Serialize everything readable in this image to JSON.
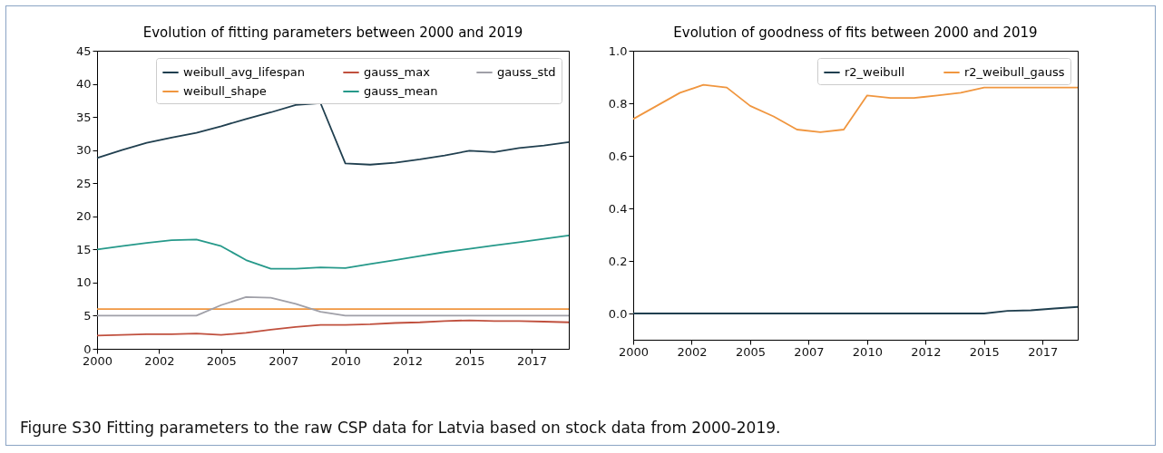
{
  "chart_data": [
    {
      "type": "line",
      "title": "Evolution of fitting parameters between 2000 and 2019",
      "x": [
        2000,
        2001,
        2002,
        2003,
        2004,
        2005,
        2006,
        2007,
        2008,
        2009,
        2010,
        2011,
        2012,
        2013,
        2014,
        2015,
        2016,
        2017,
        2018,
        2019
      ],
      "series": [
        {
          "name": "weibull_avg_lifespan",
          "color": "#203f4f",
          "values": [
            28.8,
            30.0,
            31.1,
            31.9,
            32.6,
            33.6,
            34.7,
            35.7,
            36.8,
            37.1,
            28.0,
            27.8,
            28.1,
            28.6,
            29.2,
            29.9,
            29.7,
            30.3,
            30.7,
            31.2
          ]
        },
        {
          "name": "weibull_shape",
          "color": "#f0963f",
          "values": [
            6.0,
            6.0,
            6.0,
            6.0,
            6.0,
            6.0,
            6.0,
            6.0,
            6.0,
            6.0,
            6.0,
            6.0,
            6.0,
            6.0,
            6.0,
            6.0,
            6.0,
            6.0,
            6.0,
            6.0
          ]
        },
        {
          "name": "gauss_max",
          "color": "#c0503e",
          "values": [
            2.0,
            2.1,
            2.2,
            2.2,
            2.3,
            2.1,
            2.4,
            2.9,
            3.3,
            3.6,
            3.6,
            3.7,
            3.9,
            4.0,
            4.2,
            4.3,
            4.2,
            4.2,
            4.1,
            4.0
          ]
        },
        {
          "name": "gauss_mean",
          "color": "#26998a",
          "values": [
            15.0,
            15.5,
            16.0,
            16.4,
            16.5,
            15.5,
            13.4,
            12.1,
            12.1,
            12.3,
            12.2,
            12.8,
            13.4,
            14.0,
            14.6,
            15.1,
            15.6,
            16.1,
            16.6,
            17.1
          ]
        },
        {
          "name": "gauss_std",
          "color": "#a0a0a8",
          "values": [
            5.0,
            5.0,
            5.0,
            5.0,
            5.0,
            6.6,
            7.8,
            7.7,
            6.8,
            5.6,
            5.0,
            5.0,
            5.0,
            5.0,
            5.0,
            5.0,
            5.0,
            5.0,
            5.0,
            5.0
          ]
        }
      ],
      "xlim": [
        2000,
        2019
      ],
      "xticks": [
        2000,
        {
          "value": 2002.5,
          "label": "2002"
        },
        2005,
        {
          "value": 2007.5,
          "label": "2007"
        },
        2010,
        {
          "value": 2012.5,
          "label": "2012"
        },
        2015,
        {
          "value": 2017.5,
          "label": "2017"
        }
      ],
      "ylim": [
        0,
        45
      ],
      "yticks": [
        0,
        5,
        10,
        15,
        20,
        25,
        30,
        35,
        40,
        45
      ],
      "legend": "top right",
      "grid": false
    },
    {
      "type": "line",
      "title": "Evolution of goodness of fits between 2000 and 2019",
      "x": [
        2000,
        2001,
        2002,
        2003,
        2004,
        2005,
        2006,
        2007,
        2008,
        2009,
        2010,
        2011,
        2012,
        2013,
        2014,
        2015,
        2016,
        2017,
        2018,
        2019
      ],
      "series": [
        {
          "name": "r2_weibull",
          "color": "#203f4f",
          "values": [
            0,
            0,
            0,
            0,
            0,
            0,
            0,
            0,
            0,
            0,
            0,
            0,
            0,
            0,
            0,
            0,
            0.01,
            0.012,
            0.019,
            0.025
          ]
        },
        {
          "name": "r2_weibull_gauss",
          "color": "#f0963f",
          "values": [
            0.74,
            0.79,
            0.84,
            0.87,
            0.86,
            0.79,
            0.75,
            0.7,
            0.69,
            0.7,
            0.83,
            0.82,
            0.82,
            0.83,
            0.84,
            0.86,
            0.86,
            0.86,
            0.86,
            0.86
          ]
        }
      ],
      "xlim": [
        2000,
        2019
      ],
      "xticks": [
        2000,
        {
          "value": 2002.5,
          "label": "2002"
        },
        2005,
        {
          "value": 2007.5,
          "label": "2007"
        },
        2010,
        {
          "value": 2012.5,
          "label": "2012"
        },
        2015,
        {
          "value": 2017.5,
          "label": "2017"
        }
      ],
      "ylim": [
        -0.1,
        1.0
      ],
      "yticks": [
        {
          "value": 0,
          "label": "0.0"
        },
        0.2,
        0.4,
        0.6,
        0.8,
        {
          "value": 1,
          "label": "1.0"
        }
      ],
      "legend": "top right",
      "grid": false,
      "annotations": [
        "Figure S30 Fitting parameters to the raw CSP data for Latvia based on stock data from 2000-2019."
      ]
    }
  ]
}
